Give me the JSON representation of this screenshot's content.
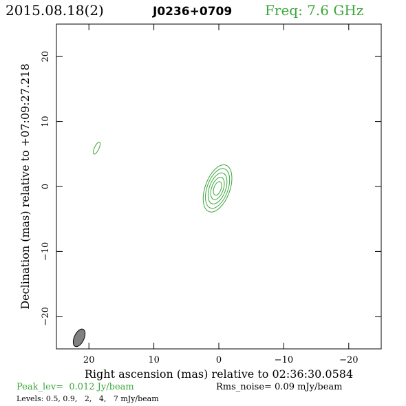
{
  "header": {
    "date": "2015.08.18(2)",
    "source": "J0236+0709",
    "freq": "Freq: 7.6 GHz"
  },
  "footer": {
    "peak": "Peak_lev=  0.012 Jy/beam",
    "rms": "Rms_noise= 0.09 mJy/beam",
    "levels": "Levels: 0.5, 0.9,   2,   4,   7 mJy/beam"
  },
  "colors": {
    "contour": "#3aa63a",
    "beam_fill": "#808080",
    "axes": "#000000"
  },
  "chart_data": {
    "type": "contour",
    "xlabel": "Right ascension (mas) relative to 02:36:30.0584",
    "ylabel": "Declination (mas) relative to +07:09:27.218",
    "xlim": [
      25,
      -25
    ],
    "ylim": [
      -25,
      25
    ],
    "x_ticks": [
      20,
      10,
      0,
      -10,
      -20
    ],
    "y_ticks": [
      -20,
      -10,
      0,
      10,
      20
    ],
    "x_tick_labels": [
      "20",
      "10",
      "0",
      "−10",
      "−20"
    ],
    "y_tick_labels": [
      "−20",
      "−10",
      "0",
      "10",
      "20"
    ],
    "levels_mJy": [
      0.5,
      0.9,
      2,
      4,
      7
    ],
    "core": {
      "x": 0.2,
      "y": -0.3,
      "pa_deg": 20
    },
    "core_contours": [
      {
        "level": 0.5,
        "a": 3.8,
        "b": 1.9
      },
      {
        "level": 0.9,
        "a": 3.2,
        "b": 1.6
      },
      {
        "level": 2,
        "a": 2.5,
        "b": 1.25
      },
      {
        "level": 4,
        "a": 1.8,
        "b": 0.9
      },
      {
        "level": 7,
        "a": 1.1,
        "b": 0.55
      }
    ],
    "secondary_component": {
      "x": 18.8,
      "y": 5.9,
      "a": 1.0,
      "b": 0.35,
      "pa_deg": 25,
      "level": 0.5
    },
    "beam": {
      "x": 21.5,
      "y": -23.3,
      "a": 1.45,
      "b": 0.75,
      "pa_deg": 25
    }
  }
}
